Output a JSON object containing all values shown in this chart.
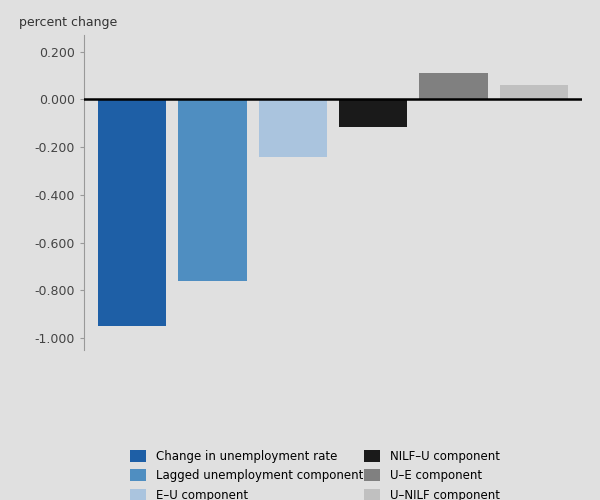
{
  "values": [
    -0.95,
    -0.76,
    -0.24,
    -0.115,
    0.11,
    0.06
  ],
  "bar_colors": [
    "#1e5fa6",
    "#4f8ec1",
    "#aac4de",
    "#1a1a1a",
    "#808080",
    "#c0c0c0"
  ],
  "legend_labels": [
    "Change in unemployment rate",
    "Lagged unemployment component",
    "E–U component",
    "NILF–U component",
    "U–E component",
    "U–NILF component"
  ],
  "legend_colors": [
    "#1e5fa6",
    "#4f8ec1",
    "#aac4de",
    "#1a1a1a",
    "#808080",
    "#c0c0c0"
  ],
  "ylabel": "percent change",
  "ylim": [
    -1.05,
    0.27
  ],
  "yticks": [
    -1.0,
    -0.8,
    -0.6,
    -0.4,
    -0.2,
    0.0,
    0.2
  ],
  "background_color": "#e0e0e0",
  "bar_width": 0.85,
  "title": ""
}
